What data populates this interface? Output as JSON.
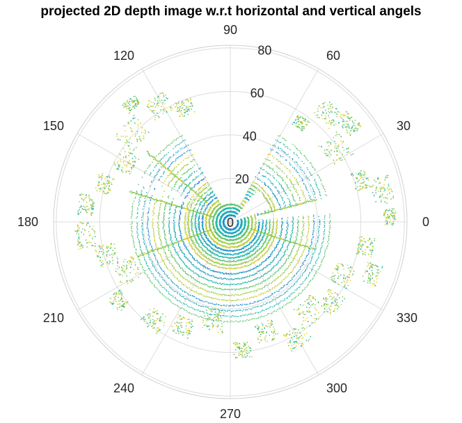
{
  "chart_data": {
    "type": "scatter",
    "coordinate_system": "polar",
    "title": "projected 2D depth image w.r.t horizontal and vertical angels",
    "theta_unit": "degrees",
    "theta_ticks": [
      0,
      30,
      60,
      90,
      120,
      150,
      180,
      210,
      240,
      270,
      300,
      330
    ],
    "r_ticks": [
      0,
      20,
      40,
      60,
      80
    ],
    "rlim": [
      0,
      80
    ],
    "grid": true,
    "colormap": [
      "#1f5fd6",
      "#1fa0c8",
      "#22b7a8",
      "#5cc26a",
      "#a6cc3a",
      "#e8cf2a"
    ],
    "series": [
      {
        "label_free": true,
        "points": [
          {
            "theta": 0,
            "r": 3,
            "c": 0.1
          },
          {
            "theta": 0,
            "r": 6,
            "c": 0.2
          },
          {
            "theta": 0,
            "r": 9,
            "c": 0.3
          },
          {
            "theta": 20,
            "r": 28,
            "c": 0.5
          },
          {
            "theta": 35,
            "r": 55,
            "c": 0.7
          },
          {
            "theta": 60,
            "r": 58,
            "c": 0.6
          },
          {
            "theta": 115,
            "r": 60,
            "c": 0.7
          },
          {
            "theta": 140,
            "r": 52,
            "c": 0.8
          },
          {
            "theta": 160,
            "r": 40,
            "c": 0.4
          },
          {
            "theta": 180,
            "r": 66,
            "c": 0.6
          },
          {
            "theta": 195,
            "r": 50,
            "c": 0.5
          },
          {
            "theta": 215,
            "r": 45,
            "c": 0.7
          },
          {
            "theta": 250,
            "r": 40,
            "c": 0.6
          },
          {
            "theta": 285,
            "r": 45,
            "c": 0.5
          },
          {
            "theta": 310,
            "r": 50,
            "c": 0.9
          },
          {
            "theta": 325,
            "r": 52,
            "c": 0.8
          },
          {
            "theta": 345,
            "r": 60,
            "c": 0.6
          },
          {
            "theta": 10,
            "r": 64,
            "c": 0.8
          }
        ]
      }
    ]
  }
}
